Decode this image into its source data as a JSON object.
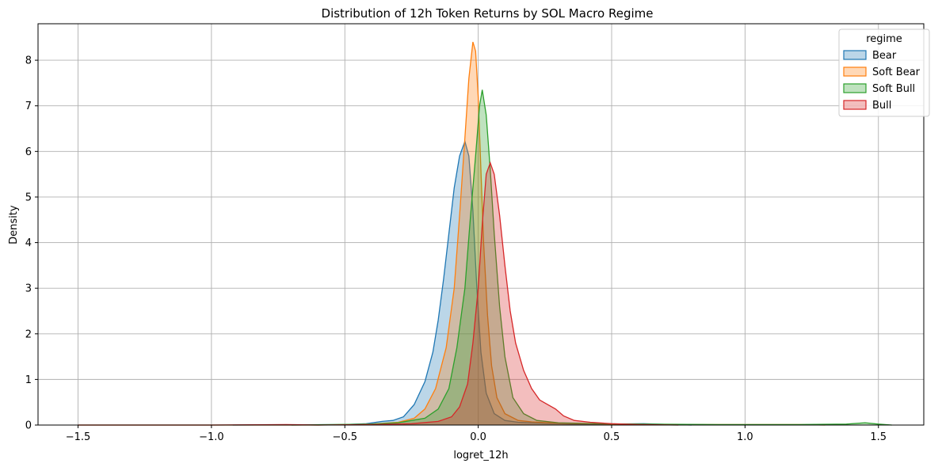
{
  "chart_data": {
    "type": "area",
    "title": "Distribution of 12h Token Returns by SOL Macro Regime",
    "xlabel": "logret_12h",
    "ylabel": "Density",
    "xlim": [
      -1.65,
      1.67
    ],
    "ylim": [
      0,
      8.8
    ],
    "x_ticks": [
      -1.5,
      -1.0,
      -0.5,
      0.0,
      0.5,
      1.0,
      1.5
    ],
    "x_tick_labels": [
      "−1.5",
      "−1.0",
      "−0.5",
      "0.0",
      "0.5",
      "1.0",
      "1.5"
    ],
    "y_ticks": [
      0,
      1,
      2,
      3,
      4,
      5,
      6,
      7,
      8
    ],
    "y_tick_labels": [
      "0",
      "1",
      "2",
      "3",
      "4",
      "5",
      "6",
      "7",
      "8"
    ],
    "grid": true,
    "legend": {
      "title": "regime",
      "placement": "top-right"
    },
    "series": [
      {
        "name": "Bear",
        "color": "#1f77b4",
        "points": [
          [
            -0.92,
            0
          ],
          [
            -0.5,
            0.01
          ],
          [
            -0.42,
            0.03
          ],
          [
            -0.36,
            0.08
          ],
          [
            -0.32,
            0.1
          ],
          [
            -0.28,
            0.18
          ],
          [
            -0.24,
            0.45
          ],
          [
            -0.2,
            0.95
          ],
          [
            -0.17,
            1.6
          ],
          [
            -0.15,
            2.3
          ],
          [
            -0.13,
            3.2
          ],
          [
            -0.11,
            4.2
          ],
          [
            -0.09,
            5.2
          ],
          [
            -0.07,
            5.9
          ],
          [
            -0.05,
            6.22
          ],
          [
            -0.035,
            5.9
          ],
          [
            -0.02,
            4.7
          ],
          [
            -0.005,
            3.0
          ],
          [
            0.01,
            1.6
          ],
          [
            0.03,
            0.7
          ],
          [
            0.06,
            0.25
          ],
          [
            0.1,
            0.1
          ],
          [
            0.15,
            0.06
          ],
          [
            0.25,
            0.04
          ],
          [
            0.35,
            0.02
          ],
          [
            0.5,
            0.02
          ],
          [
            0.62,
            0.03
          ],
          [
            0.72,
            0.01
          ],
          [
            0.8,
            0
          ]
        ]
      },
      {
        "name": "Soft Bear",
        "color": "#ff7f0e",
        "points": [
          [
            -1.5,
            0
          ],
          [
            -0.6,
            0
          ],
          [
            -0.4,
            0.02
          ],
          [
            -0.3,
            0.06
          ],
          [
            -0.24,
            0.15
          ],
          [
            -0.2,
            0.35
          ],
          [
            -0.16,
            0.8
          ],
          [
            -0.12,
            1.7
          ],
          [
            -0.09,
            3.0
          ],
          [
            -0.07,
            4.6
          ],
          [
            -0.05,
            6.3
          ],
          [
            -0.035,
            7.6
          ],
          [
            -0.02,
            8.4
          ],
          [
            -0.01,
            8.2
          ],
          [
            0.0,
            7.2
          ],
          [
            0.01,
            5.6
          ],
          [
            0.02,
            4.0
          ],
          [
            0.035,
            2.4
          ],
          [
            0.05,
            1.3
          ],
          [
            0.07,
            0.6
          ],
          [
            0.1,
            0.25
          ],
          [
            0.15,
            0.1
          ],
          [
            0.2,
            0.07
          ],
          [
            0.3,
            0.04
          ],
          [
            0.5,
            0.02
          ],
          [
            0.8,
            0.01
          ],
          [
            1.0,
            0.01
          ],
          [
            1.2,
            0.01
          ],
          [
            1.3,
            0
          ]
        ]
      },
      {
        "name": "Soft Bull",
        "color": "#2ca02c",
        "points": [
          [
            -0.7,
            0
          ],
          [
            -0.4,
            0.02
          ],
          [
            -0.3,
            0.05
          ],
          [
            -0.2,
            0.15
          ],
          [
            -0.15,
            0.35
          ],
          [
            -0.11,
            0.8
          ],
          [
            -0.08,
            1.7
          ],
          [
            -0.05,
            3.0
          ],
          [
            -0.03,
            4.5
          ],
          [
            -0.01,
            5.9
          ],
          [
            0.005,
            7.0
          ],
          [
            0.015,
            7.35
          ],
          [
            0.03,
            6.8
          ],
          [
            0.045,
            5.6
          ],
          [
            0.06,
            4.2
          ],
          [
            0.08,
            2.6
          ],
          [
            0.1,
            1.5
          ],
          [
            0.13,
            0.6
          ],
          [
            0.17,
            0.25
          ],
          [
            0.22,
            0.1
          ],
          [
            0.3,
            0.05
          ],
          [
            0.45,
            0.03
          ],
          [
            0.6,
            0.02
          ],
          [
            0.9,
            0.01
          ],
          [
            1.2,
            0.01
          ],
          [
            1.38,
            0.02
          ],
          [
            1.45,
            0.05
          ],
          [
            1.5,
            0.02
          ],
          [
            1.55,
            0
          ]
        ]
      },
      {
        "name": "Bull",
        "color": "#d62728",
        "points": [
          [
            -1.5,
            0
          ],
          [
            -1.0,
            0
          ],
          [
            -0.72,
            0.01
          ],
          [
            -0.6,
            0
          ],
          [
            -0.4,
            0.01
          ],
          [
            -0.25,
            0.03
          ],
          [
            -0.15,
            0.08
          ],
          [
            -0.1,
            0.18
          ],
          [
            -0.07,
            0.4
          ],
          [
            -0.04,
            0.9
          ],
          [
            -0.02,
            1.8
          ],
          [
            0.0,
            3.0
          ],
          [
            0.015,
            4.4
          ],
          [
            0.03,
            5.5
          ],
          [
            0.045,
            5.75
          ],
          [
            0.06,
            5.5
          ],
          [
            0.08,
            4.6
          ],
          [
            0.1,
            3.5
          ],
          [
            0.12,
            2.5
          ],
          [
            0.14,
            1.8
          ],
          [
            0.17,
            1.2
          ],
          [
            0.2,
            0.8
          ],
          [
            0.23,
            0.55
          ],
          [
            0.26,
            0.45
          ],
          [
            0.29,
            0.35
          ],
          [
            0.32,
            0.2
          ],
          [
            0.36,
            0.1
          ],
          [
            0.42,
            0.06
          ],
          [
            0.5,
            0.03
          ],
          [
            0.6,
            0.01
          ],
          [
            0.75,
            0
          ]
        ]
      }
    ]
  }
}
